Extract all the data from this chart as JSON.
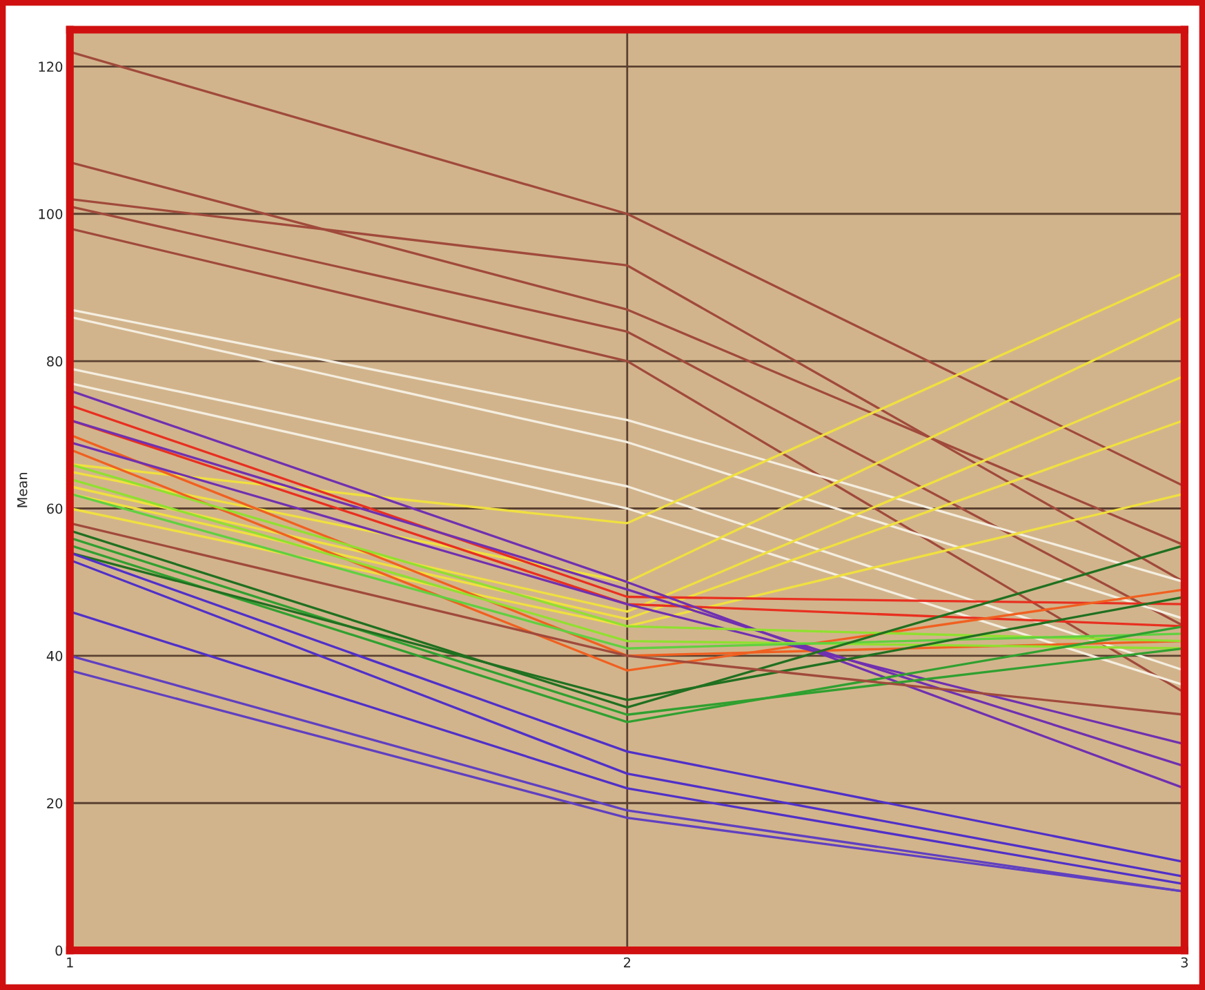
{
  "chart_data": {
    "type": "line",
    "ylabel": "Mean",
    "x": [
      1,
      2,
      3
    ],
    "xlim": [
      1,
      3
    ],
    "xticks": [
      1,
      2,
      3
    ],
    "ylim": [
      0,
      125
    ],
    "yticks": [
      0,
      20,
      40,
      60,
      80,
      100,
      120
    ],
    "grid": true,
    "legend": false,
    "marker": "none",
    "line_style": "solid",
    "series": [
      {
        "color": "#a04a3c",
        "values": [
          122,
          100,
          63
        ]
      },
      {
        "color": "#a04a3c",
        "values": [
          107,
          87,
          55
        ]
      },
      {
        "color": "#a04a3c",
        "values": [
          102,
          93,
          50
        ]
      },
      {
        "color": "#a04a3c",
        "values": [
          101,
          84,
          44
        ]
      },
      {
        "color": "#a04a3c",
        "values": [
          98,
          80,
          35
        ]
      },
      {
        "color": "#f4eee0",
        "values": [
          87,
          72,
          50
        ]
      },
      {
        "color": "#f4eee0",
        "values": [
          86,
          69,
          45
        ]
      },
      {
        "color": "#f4eee0",
        "values": [
          79,
          63,
          38
        ]
      },
      {
        "color": "#f4eee0",
        "values": [
          77,
          60,
          36
        ]
      },
      {
        "color": "#f0e040",
        "values": [
          66,
          58,
          92
        ]
      },
      {
        "color": "#f0e040",
        "values": [
          65,
          50,
          86
        ]
      },
      {
        "color": "#f0e040",
        "values": [
          63,
          46,
          78
        ]
      },
      {
        "color": "#f0e040",
        "values": [
          62,
          45,
          72
        ]
      },
      {
        "color": "#f0e040",
        "values": [
          60,
          44,
          62
        ]
      },
      {
        "color": "#e83020",
        "values": [
          74,
          48,
          47
        ]
      },
      {
        "color": "#e83020",
        "values": [
          72,
          47,
          44
        ]
      },
      {
        "color": "#f06020",
        "values": [
          70,
          40,
          42
        ]
      },
      {
        "color": "#f06020",
        "values": [
          68,
          38,
          49
        ]
      },
      {
        "color": "#7030b0",
        "values": [
          76,
          50,
          22
        ]
      },
      {
        "color": "#7030b0",
        "values": [
          72,
          49,
          25
        ]
      },
      {
        "color": "#7030b0",
        "values": [
          69,
          47,
          28
        ]
      },
      {
        "color": "#90e030",
        "values": [
          66,
          44,
          42
        ]
      },
      {
        "color": "#90e030",
        "values": [
          64,
          42,
          41
        ]
      },
      {
        "color": "#60d040",
        "values": [
          62,
          41,
          43
        ]
      },
      {
        "color": "#207020",
        "values": [
          57,
          33,
          55
        ]
      },
      {
        "color": "#30a030",
        "values": [
          56,
          32,
          41
        ]
      },
      {
        "color": "#30a030",
        "values": [
          55,
          31,
          44
        ]
      },
      {
        "color": "#207020",
        "values": [
          54,
          34,
          48
        ]
      },
      {
        "color": "#5030c8",
        "values": [
          54,
          27,
          12
        ]
      },
      {
        "color": "#5030c8",
        "values": [
          53,
          24,
          10
        ]
      },
      {
        "color": "#5030c8",
        "values": [
          46,
          22,
          9
        ]
      },
      {
        "color": "#6040c0",
        "values": [
          40,
          19,
          8
        ]
      },
      {
        "color": "#6040c0",
        "values": [
          38,
          18,
          8
        ]
      },
      {
        "color": "#a04a3c",
        "values": [
          58,
          40,
          32
        ]
      }
    ]
  }
}
